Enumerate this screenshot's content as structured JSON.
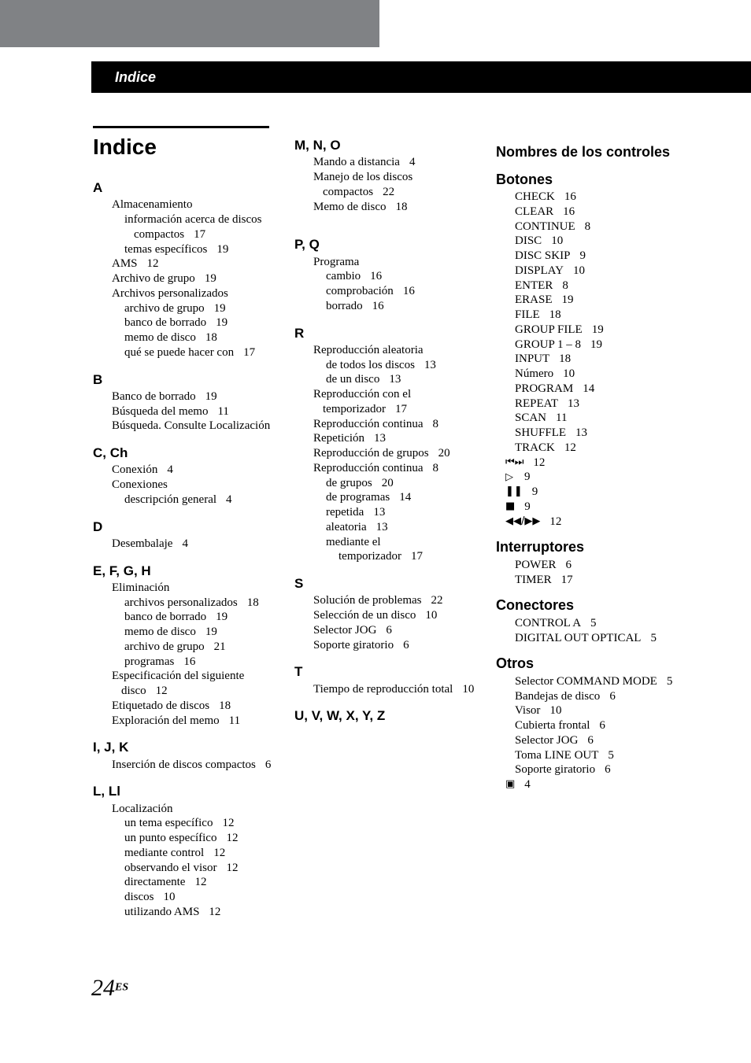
{
  "header": {
    "section_title": "Indice"
  },
  "title": "Indice",
  "footer": {
    "page_number": "24",
    "lang_sup": "ES"
  },
  "col1": [
    {
      "type": "rule"
    },
    {
      "type": "title",
      "text": "Indice"
    },
    {
      "type": "letter",
      "text": "A"
    },
    {
      "type": "entry",
      "text": "Almacenamiento"
    },
    {
      "type": "entry",
      "level": "sub",
      "text": "información acerca de discos compactos",
      "page": "17"
    },
    {
      "type": "entry",
      "level": "sub",
      "text": "temas específicos",
      "page": "19"
    },
    {
      "type": "entry",
      "text": "AMS",
      "page": "12"
    },
    {
      "type": "entry",
      "text": "Archivo de grupo",
      "page": "19"
    },
    {
      "type": "entry",
      "text": "Archivos personalizados"
    },
    {
      "type": "entry",
      "level": "sub",
      "text": "archivo de grupo",
      "page": "19"
    },
    {
      "type": "entry",
      "level": "sub",
      "text": "banco de borrado",
      "page": "19"
    },
    {
      "type": "entry",
      "level": "sub",
      "text": "memo de disco",
      "page": "18"
    },
    {
      "type": "entry",
      "level": "sub",
      "text": "qué se puede hacer con",
      "page": "17"
    },
    {
      "type": "letter",
      "text": "B"
    },
    {
      "type": "entry",
      "text": "Banco de borrado",
      "page": "19"
    },
    {
      "type": "entry",
      "text": "Búsqueda del memo",
      "page": "11"
    },
    {
      "type": "entry",
      "text": "Búsqueda. Consulte Localización"
    },
    {
      "type": "letter",
      "text": "C, Ch"
    },
    {
      "type": "entry",
      "text": "Conexión",
      "page": "4"
    },
    {
      "type": "entry",
      "text": "Conexiones"
    },
    {
      "type": "entry",
      "level": "sub",
      "text": "descripción general",
      "page": "4"
    },
    {
      "type": "letter",
      "text": "D"
    },
    {
      "type": "entry",
      "text": "Desembalaje",
      "page": "4"
    },
    {
      "type": "letter",
      "text": "E, F, G, H"
    },
    {
      "type": "entry",
      "text": "Eliminación"
    },
    {
      "type": "entry",
      "level": "sub",
      "text": "archivos personalizados",
      "page": "18"
    },
    {
      "type": "entry",
      "level": "sub",
      "text": "banco de borrado",
      "page": "19"
    },
    {
      "type": "entry",
      "level": "sub",
      "text": "memo de disco",
      "page": "19"
    },
    {
      "type": "entry",
      "level": "sub",
      "text": "archivo de grupo",
      "page": "21"
    },
    {
      "type": "entry",
      "level": "sub",
      "text": "programas",
      "page": "16"
    },
    {
      "type": "entry",
      "text": "Especificación del siguiente disco",
      "page": "12"
    },
    {
      "type": "entry",
      "text": "Etiquetado de discos",
      "page": "18"
    },
    {
      "type": "entry",
      "text": "Exploración del memo",
      "page": "11"
    },
    {
      "type": "letter",
      "text": "I, J, K"
    },
    {
      "type": "entry",
      "text": "Inserción de discos compactos",
      "page": "6"
    },
    {
      "type": "letter",
      "text": "L, Ll"
    },
    {
      "type": "entry",
      "text": "Localización"
    },
    {
      "type": "entry",
      "level": "sub",
      "text": "un tema específico",
      "page": "12"
    },
    {
      "type": "entry",
      "level": "sub",
      "text": "un punto específico",
      "page": "12"
    },
    {
      "type": "entry",
      "level": "sub",
      "text": "mediante control",
      "page": "12"
    },
    {
      "type": "entry",
      "level": "sub",
      "text": "observando el visor",
      "page": "12"
    },
    {
      "type": "entry",
      "level": "sub",
      "text": "directamente",
      "page": "12"
    },
    {
      "type": "entry",
      "level": "sub",
      "text": "discos",
      "page": "10"
    },
    {
      "type": "entry",
      "level": "sub",
      "text": "utilizando AMS",
      "page": "12"
    }
  ],
  "col2": [
    {
      "type": "letter",
      "text": "M, N, O"
    },
    {
      "type": "entry",
      "text": "Mando a distancia",
      "page": "4"
    },
    {
      "type": "entry",
      "text": "Manejo de los discos compactos",
      "page": "22"
    },
    {
      "type": "entry",
      "text": "Memo de disco",
      "page": "18"
    },
    {
      "type": "gap"
    },
    {
      "type": "letter",
      "text": "P, Q"
    },
    {
      "type": "entry",
      "text": "Programa"
    },
    {
      "type": "entry",
      "level": "sub",
      "text": "cambio",
      "page": "16"
    },
    {
      "type": "entry",
      "level": "sub",
      "text": "comprobación",
      "page": "16"
    },
    {
      "type": "entry",
      "level": "sub",
      "text": "borrado",
      "page": "16"
    },
    {
      "type": "letter",
      "text": "R"
    },
    {
      "type": "entry",
      "text": "Reproducción aleatoria"
    },
    {
      "type": "entry",
      "level": "sub",
      "text": "de todos los discos",
      "page": "13"
    },
    {
      "type": "entry",
      "level": "sub",
      "text": "de un disco",
      "page": "13"
    },
    {
      "type": "entry",
      "text": "Reproducción con el temporizador",
      "page": "17"
    },
    {
      "type": "entry",
      "text": "Reproducción continua",
      "page": "8"
    },
    {
      "type": "entry",
      "text": "Repetición",
      "page": "13"
    },
    {
      "type": "entry",
      "text": "Reproducción de grupos",
      "page": "20"
    },
    {
      "type": "entry",
      "text": "Reproducción continua",
      "page": "8"
    },
    {
      "type": "entry",
      "level": "sub",
      "text": "de grupos",
      "page": "20"
    },
    {
      "type": "entry",
      "level": "sub",
      "text": "de programas",
      "page": "14"
    },
    {
      "type": "entry",
      "level": "sub",
      "text": "repetida",
      "page": "13"
    },
    {
      "type": "entry",
      "level": "sub",
      "text": "aleatoria",
      "page": "13"
    },
    {
      "type": "entry",
      "level": "sub",
      "text": "mediante el"
    },
    {
      "type": "entry",
      "level": "subsub",
      "text": "temporizador",
      "page": "17"
    },
    {
      "type": "letter",
      "text": "S"
    },
    {
      "type": "entry",
      "text": "Solución de problemas",
      "page": "22"
    },
    {
      "type": "entry",
      "text": "Selección de un disco",
      "page": "10"
    },
    {
      "type": "entry",
      "text": "Selector JOG",
      "page": "6"
    },
    {
      "type": "entry",
      "text": "Soporte giratorio",
      "page": "6"
    },
    {
      "type": "letter",
      "text": "T"
    },
    {
      "type": "entry",
      "text": "Tiempo de reproducción total",
      "page": "10"
    },
    {
      "type": "letter",
      "text": "U, V, W, X, Y, Z"
    }
  ],
  "col3": [
    {
      "type": "subsection",
      "text": "Nombres de los controles"
    },
    {
      "type": "subhead",
      "text": "Botones"
    },
    {
      "type": "entry",
      "text": "CHECK",
      "page": "16"
    },
    {
      "type": "entry",
      "text": "CLEAR",
      "page": "16"
    },
    {
      "type": "entry",
      "text": "CONTINUE",
      "page": "8"
    },
    {
      "type": "entry",
      "text": "DISC",
      "page": "10"
    },
    {
      "type": "entry",
      "text": "DISC SKIP",
      "page": "9"
    },
    {
      "type": "entry",
      "text": "DISPLAY",
      "page": "10"
    },
    {
      "type": "entry",
      "text": "ENTER",
      "page": "8"
    },
    {
      "type": "entry",
      "text": "ERASE",
      "page": "19"
    },
    {
      "type": "entry",
      "text": "FILE",
      "page": "18"
    },
    {
      "type": "entry",
      "text": "GROUP FILE",
      "page": "19"
    },
    {
      "type": "entry",
      "text": "GROUP 1 – 8",
      "page": "19"
    },
    {
      "type": "entry",
      "text": "INPUT",
      "page": "18"
    },
    {
      "type": "entry",
      "text": "Número",
      "page": "10"
    },
    {
      "type": "entry",
      "text": "PROGRAM",
      "page": "14"
    },
    {
      "type": "entry",
      "text": "REPEAT",
      "page": "13"
    },
    {
      "type": "entry",
      "text": "SCAN",
      "page": "11"
    },
    {
      "type": "entry",
      "text": "SHUFFLE",
      "page": "13"
    },
    {
      "type": "entry",
      "text": "TRACK",
      "page": "12"
    },
    {
      "type": "glyph",
      "glyph": "prev-next",
      "page": "12"
    },
    {
      "type": "glyph",
      "glyph": "play",
      "page": "9"
    },
    {
      "type": "glyph",
      "glyph": "pause",
      "page": "9"
    },
    {
      "type": "glyph",
      "glyph": "stop",
      "page": "9"
    },
    {
      "type": "glyph",
      "glyph": "rew-ff",
      "page": "12"
    },
    {
      "type": "subhead",
      "text": "Interruptores"
    },
    {
      "type": "entry",
      "text": "POWER",
      "page": "6"
    },
    {
      "type": "entry",
      "text": "TIMER",
      "page": "17"
    },
    {
      "type": "subhead",
      "text": "Conectores"
    },
    {
      "type": "entry",
      "text": "CONTROL A",
      "page": "5"
    },
    {
      "type": "entry",
      "text": "DIGITAL OUT OPTICAL",
      "page": "5"
    },
    {
      "type": "subhead",
      "text": "Otros"
    },
    {
      "type": "entry",
      "text": "Selector COMMAND MODE",
      "page": "5"
    },
    {
      "type": "entry",
      "text": "Bandejas de disco",
      "page": "6"
    },
    {
      "type": "entry",
      "text": "Visor",
      "page": "10"
    },
    {
      "type": "entry",
      "text": "Cubierta frontal",
      "page": "6"
    },
    {
      "type": "entry",
      "text": "Selector JOG",
      "page": "6"
    },
    {
      "type": "entry",
      "text": "Toma LINE OUT",
      "page": "5"
    },
    {
      "type": "entry",
      "text": "Soporte giratorio",
      "page": "6"
    },
    {
      "type": "glyph",
      "glyph": "remote",
      "page": "4"
    }
  ],
  "glyphs": {
    "prev-next": "⏮⏭",
    "play": "▷",
    "pause": "❚❚",
    "stop": "■",
    "rew-ff": "◀◀/▶▶",
    "remote": "▣"
  }
}
